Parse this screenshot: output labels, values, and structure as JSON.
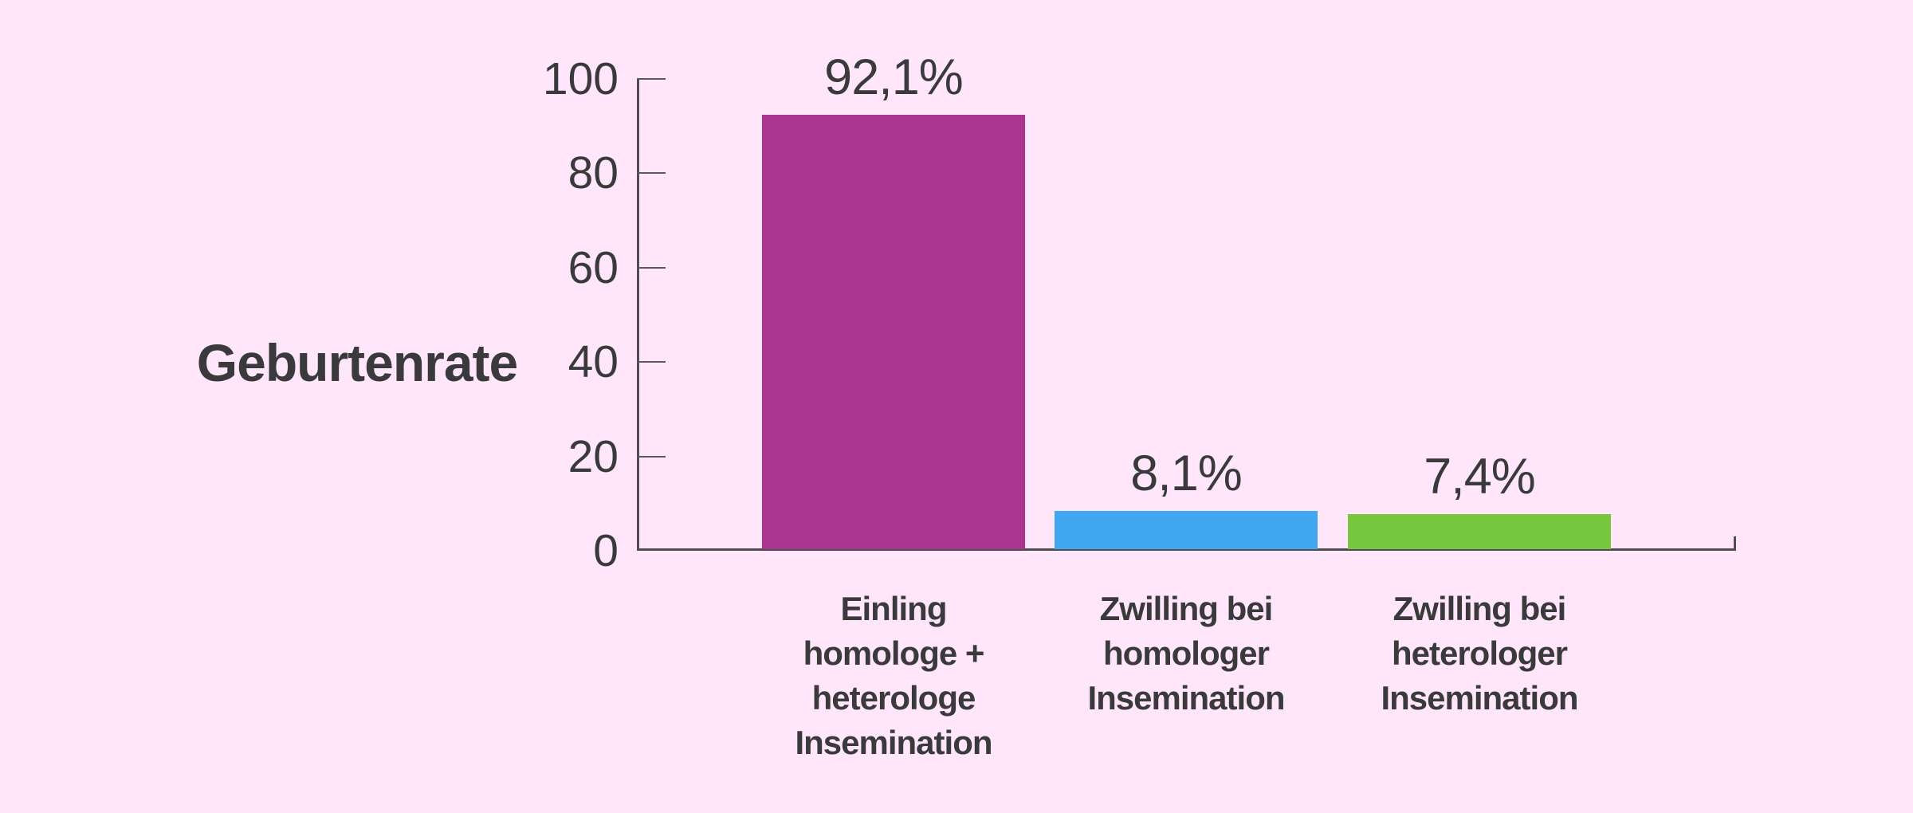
{
  "background_color": "#ffe6fa",
  "text_color": "#3a3a3c",
  "axis_color": "#4e4e50",
  "chart_data": {
    "type": "bar",
    "title": "",
    "xlabel": "",
    "ylabel": "Geburtenrate",
    "ylim": [
      0,
      100
    ],
    "yticks": [
      0,
      20,
      40,
      60,
      80,
      100
    ],
    "grid": false,
    "legend": "none",
    "unit": "%",
    "decimal_separator": ",",
    "categories": [
      "Einling\nhomologe +\nheterologe\nInsemination",
      "Zwilling bei\nhomologer\nInsemination",
      "Zwilling bei\nheterologer\nInsemination"
    ],
    "values": [
      92.1,
      8.1,
      7.4
    ],
    "values_display": [
      "92,1%",
      "8,1%",
      "7,4%"
    ],
    "colors": [
      "#aa3590",
      "#41a7f0",
      "#76c73e"
    ]
  }
}
